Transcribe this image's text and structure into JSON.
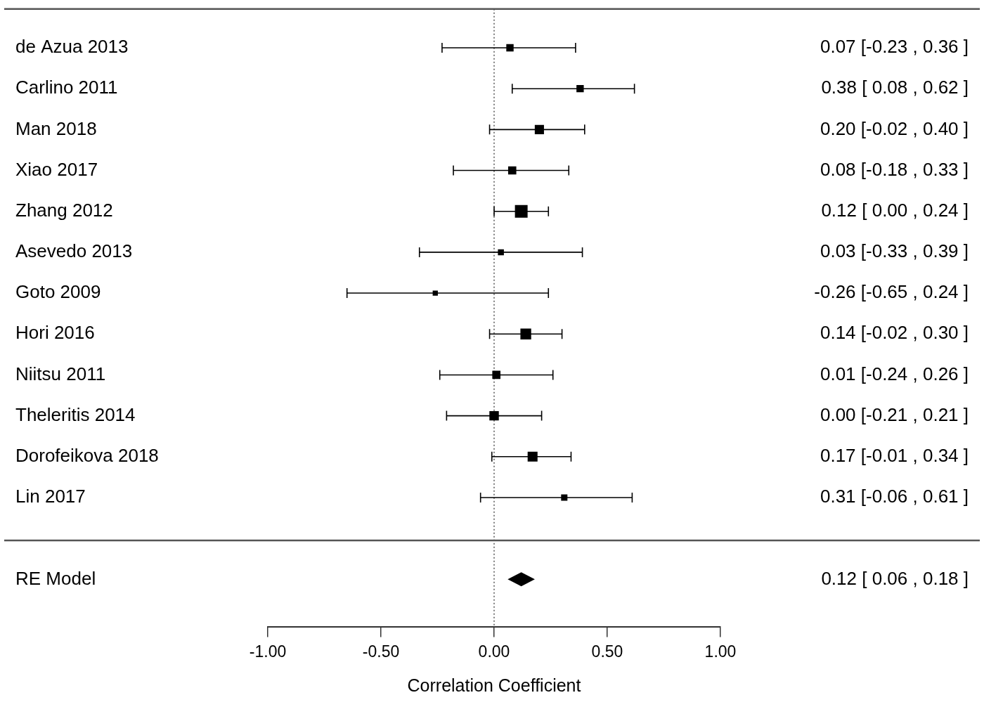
{
  "chart_data": {
    "type": "forest",
    "categories": [
      "de Azua 2013",
      "Carlino 2011",
      "Man 2018",
      "Xiao 2017",
      "Zhang 2012",
      "Asevedo 2013",
      "Goto 2009",
      "Hori 2016",
      "Niitsu 2011",
      "Theleritis 2014",
      "Dorofeikova 2018",
      "Lin 2017"
    ],
    "values": [
      0.07,
      0.38,
      0.2,
      0.08,
      0.12,
      0.03,
      -0.26,
      0.14,
      0.01,
      0.0,
      0.17,
      0.31
    ],
    "ci_lower": [
      -0.23,
      0.08,
      -0.02,
      -0.18,
      0.0,
      -0.33,
      -0.65,
      -0.02,
      -0.24,
      -0.21,
      -0.01,
      -0.06
    ],
    "ci_upper": [
      0.36,
      0.62,
      0.4,
      0.33,
      0.24,
      0.39,
      0.24,
      0.3,
      0.26,
      0.21,
      0.34,
      0.61
    ],
    "weights": [
      6,
      6,
      9.5,
      7.5,
      18,
      4,
      3,
      13,
      7.5,
      10,
      11,
      4.5
    ],
    "value_labels": [
      "0.07 [-0.23 , 0.36 ]",
      "0.38 [ 0.08 , 0.62 ]",
      "0.20 [-0.02 , 0.40 ]",
      "0.08 [-0.18 , 0.33 ]",
      "0.12 [ 0.00 , 0.24 ]",
      "0.03 [-0.33 , 0.39 ]",
      "-0.26 [-0.65 , 0.24 ]",
      "0.14 [-0.02 , 0.30 ]",
      "0.01 [-0.24 , 0.26 ]",
      "0.00 [-0.21 , 0.21 ]",
      "0.17 [-0.01 , 0.34 ]",
      "0.31 [-0.06 , 0.61 ]"
    ],
    "summary": {
      "name": "RE Model",
      "value": 0.12,
      "ci_lower": 0.06,
      "ci_upper": 0.18,
      "value_label": "0.12 [ 0.06 , 0.18 ]"
    },
    "xlabel": "Correlation Coefficient",
    "xlim": [
      -1,
      1
    ],
    "xticks": [
      {
        "value": -1,
        "label": "-1.00"
      },
      {
        "value": -0.5,
        "label": "-0.50"
      },
      {
        "value": 0,
        "label": "0.00"
      },
      {
        "value": 0.5,
        "label": "0.50"
      },
      {
        "value": 1,
        "label": "1.00"
      }
    ],
    "reference_line": 0,
    "color": "#000000",
    "marker": "square",
    "grid": false
  }
}
